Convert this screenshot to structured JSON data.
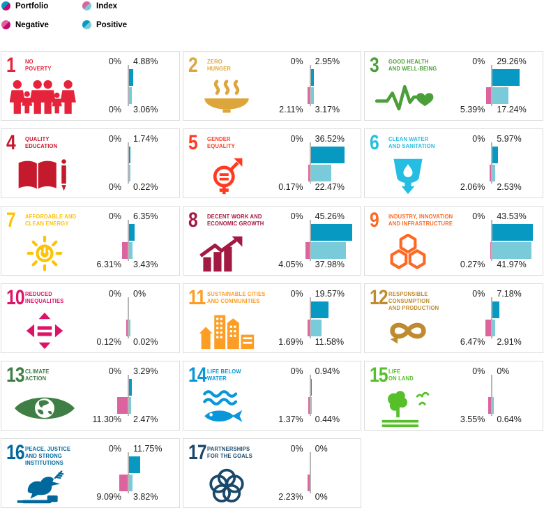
{
  "legend": {
    "items": [
      {
        "id": "portfolio",
        "label": "Portfolio",
        "swatch_colors": [
          "#0899C2",
          "#C00A6E"
        ]
      },
      {
        "id": "index",
        "label": "Index",
        "swatch_colors": [
          "#DD639E",
          "#79CBD9"
        ]
      },
      {
        "id": "negative",
        "label": "Negative",
        "swatch_colors": [
          "#DD639E",
          "#C00A6E"
        ]
      },
      {
        "id": "positive",
        "label": "Positive",
        "swatch_colors": [
          "#0899C2",
          "#79CBD9"
        ]
      }
    ]
  },
  "chart_style": {
    "portfolio_positive_color": "#0899C2",
    "portfolio_negative_color": "#C00A6E",
    "index_positive_color": "#79CBD9",
    "index_negative_color": "#DD639E",
    "axis_color": "#B5B5B5",
    "label_color": "#1D1D1B"
  },
  "goals": [
    {
      "number": "1",
      "title_lines": [
        "NO",
        "POVERTY"
      ],
      "color": "#E5243B",
      "icon": "people-icon",
      "bars": {
        "portfolio_negative": 0,
        "portfolio_positive": 4.88,
        "index_negative": 0,
        "index_positive": 3.06
      },
      "labels": {
        "portfolio_negative": "0%",
        "portfolio_positive": "4.88%",
        "index_negative": "0%",
        "index_positive": "3.06%"
      }
    },
    {
      "number": "2",
      "title_lines": [
        "ZERO",
        "HUNGER"
      ],
      "color": "#DDA63A",
      "icon": "bowl-icon",
      "bars": {
        "portfolio_negative": 0,
        "portfolio_positive": 2.95,
        "index_negative": 2.11,
        "index_positive": 3.17
      },
      "labels": {
        "portfolio_negative": "0%",
        "portfolio_positive": "2.95%",
        "index_negative": "2.11%",
        "index_positive": "3.17%"
      }
    },
    {
      "number": "3",
      "title_lines": [
        "GOOD HEALTH",
        "AND WELL-BEING"
      ],
      "color": "#4C9F38",
      "icon": "heartbeat-icon",
      "bars": {
        "portfolio_negative": 0,
        "portfolio_positive": 29.26,
        "index_negative": 5.39,
        "index_positive": 17.24
      },
      "labels": {
        "portfolio_negative": "0%",
        "portfolio_positive": "29.26%",
        "index_negative": "5.39%",
        "index_positive": "17.24%"
      }
    },
    {
      "number": "4",
      "title_lines": [
        "QUALITY",
        "EDUCATION"
      ],
      "color": "#C5192D",
      "icon": "book-icon",
      "bars": {
        "portfolio_negative": 0,
        "portfolio_positive": 1.74,
        "index_negative": 0,
        "index_positive": 0.22
      },
      "labels": {
        "portfolio_negative": "0%",
        "portfolio_positive": "1.74%",
        "index_negative": "0%",
        "index_positive": "0.22%"
      }
    },
    {
      "number": "5",
      "title_lines": [
        "GENDER",
        "EQUALITY"
      ],
      "color": "#FF3A21",
      "icon": "gender-equality-icon",
      "bars": {
        "portfolio_negative": 0,
        "portfolio_positive": 36.52,
        "index_negative": 0.17,
        "index_positive": 22.47
      },
      "labels": {
        "portfolio_negative": "0%",
        "portfolio_positive": "36.52%",
        "index_negative": "0.17%",
        "index_positive": "22.47%"
      }
    },
    {
      "number": "6",
      "title_lines": [
        "CLEAN WATER",
        "AND SANITATION"
      ],
      "color": "#26BDE2",
      "icon": "water-icon",
      "bars": {
        "portfolio_negative": 0,
        "portfolio_positive": 5.97,
        "index_negative": 2.06,
        "index_positive": 2.53
      },
      "labels": {
        "portfolio_negative": "0%",
        "portfolio_positive": "5.97%",
        "index_negative": "2.06%",
        "index_positive": "2.53%"
      }
    },
    {
      "number": "7",
      "title_lines": [
        "AFFORDABLE AND",
        "CLEAN ENERGY"
      ],
      "color": "#FCC30B",
      "icon": "sun-power-icon",
      "bars": {
        "portfolio_negative": 0,
        "portfolio_positive": 6.35,
        "index_negative": 6.31,
        "index_positive": 3.43
      },
      "labels": {
        "portfolio_negative": "0%",
        "portfolio_positive": "6.35%",
        "index_negative": "6.31%",
        "index_positive": "3.43%"
      }
    },
    {
      "number": "8",
      "title_lines": [
        "DECENT WORK AND",
        "ECONOMIC GROWTH"
      ],
      "color": "#A21942",
      "icon": "growth-chart-icon",
      "bars": {
        "portfolio_negative": 0,
        "portfolio_positive": 45.26,
        "index_negative": 4.05,
        "index_positive": 37.98
      },
      "labels": {
        "portfolio_negative": "0%",
        "portfolio_positive": "45.26%",
        "index_negative": "4.05%",
        "index_positive": "37.98%"
      }
    },
    {
      "number": "9",
      "title_lines": [
        "INDUSTRY, INNOVATION",
        "AND INFRASTRUCTURE"
      ],
      "color": "#FD6925",
      "icon": "cubes-icon",
      "bars": {
        "portfolio_negative": 0,
        "portfolio_positive": 43.53,
        "index_negative": 0.27,
        "index_positive": 41.97
      },
      "labels": {
        "portfolio_negative": "0%",
        "portfolio_positive": "43.53%",
        "index_negative": "0.27%",
        "index_positive": "41.97%"
      }
    },
    {
      "number": "10",
      "title_lines": [
        "REDUCED",
        "INEQUALITIES"
      ],
      "color": "#DD1367",
      "icon": "equality-arrows-icon",
      "bars": {
        "portfolio_negative": 0,
        "portfolio_positive": 0,
        "index_negative": 0.12,
        "index_positive": 0.02
      },
      "labels": {
        "portfolio_negative": "0%",
        "portfolio_positive": "0%",
        "index_negative": "0.12%",
        "index_positive": "0.02%"
      }
    },
    {
      "number": "11",
      "title_lines": [
        "SUSTAINABLE CITIES",
        "AND COMMUNITIES"
      ],
      "color": "#FD9D24",
      "icon": "city-icon",
      "bars": {
        "portfolio_negative": 0,
        "portfolio_positive": 19.57,
        "index_negative": 1.69,
        "index_positive": 11.58
      },
      "labels": {
        "portfolio_negative": "0%",
        "portfolio_positive": "19.57%",
        "index_negative": "1.69%",
        "index_positive": "11.58%"
      }
    },
    {
      "number": "12",
      "title_lines": [
        "RESPONSIBLE",
        "CONSUMPTION",
        "AND PRODUCTION"
      ],
      "color": "#BF8B2E",
      "icon": "infinity-icon",
      "bars": {
        "portfolio_negative": 0,
        "portfolio_positive": 7.18,
        "index_negative": 6.47,
        "index_positive": 2.91
      },
      "labels": {
        "portfolio_negative": "0%",
        "portfolio_positive": "7.18%",
        "index_negative": "6.47%",
        "index_positive": "2.91%"
      }
    },
    {
      "number": "13",
      "title_lines": [
        "CLIMATE",
        "ACTION"
      ],
      "color": "#3F7E44",
      "icon": "eye-globe-icon",
      "bars": {
        "portfolio_negative": 0,
        "portfolio_positive": 3.29,
        "index_negative": 11.3,
        "index_positive": 2.47
      },
      "labels": {
        "portfolio_negative": "0%",
        "portfolio_positive": "3.29%",
        "index_negative": "11.30%",
        "index_positive": "2.47%"
      }
    },
    {
      "number": "14",
      "title_lines": [
        "LIFE BELOW",
        "WATER"
      ],
      "color": "#0A97D9",
      "icon": "fish-icon",
      "bars": {
        "portfolio_negative": 0,
        "portfolio_positive": 0.94,
        "index_negative": 1.37,
        "index_positive": 0.44
      },
      "labels": {
        "portfolio_negative": "0%",
        "portfolio_positive": "0.94%",
        "index_negative": "1.37%",
        "index_positive": "0.44%"
      }
    },
    {
      "number": "15",
      "title_lines": [
        "LIFE",
        "ON LAND"
      ],
      "color": "#56C02B",
      "icon": "tree-icon",
      "bars": {
        "portfolio_negative": 0,
        "portfolio_positive": 0,
        "index_negative": 3.55,
        "index_positive": 0.64
      },
      "labels": {
        "portfolio_negative": "0%",
        "portfolio_positive": "0%",
        "index_negative": "3.55%",
        "index_positive": "0.64%"
      }
    },
    {
      "number": "16",
      "title_lines": [
        "PEACE, JUSTICE",
        "AND STRONG",
        "INSTITUTIONS"
      ],
      "color": "#00689D",
      "icon": "dove-icon",
      "bars": {
        "portfolio_negative": 0,
        "portfolio_positive": 11.75,
        "index_negative": 9.09,
        "index_positive": 3.82
      },
      "labels": {
        "portfolio_negative": "0%",
        "portfolio_positive": "11.75%",
        "index_negative": "9.09%",
        "index_positive": "3.82%"
      }
    },
    {
      "number": "17",
      "title_lines": [
        "PARTNERSHIPS",
        "FOR THE GOALS"
      ],
      "color": "#19486A",
      "icon": "flower-circles-icon",
      "bars": {
        "portfolio_negative": 0,
        "portfolio_positive": 0,
        "index_negative": 2.23,
        "index_positive": 0
      },
      "labels": {
        "portfolio_negative": "0%",
        "portfolio_positive": "0%",
        "index_negative": "2.23%",
        "index_positive": "0%"
      }
    }
  ],
  "chart_data": {
    "type": "bar",
    "orientation": "horizontal",
    "unit": "%",
    "legend_position": "top-left",
    "categories": [
      "1 No Poverty",
      "2 Zero Hunger",
      "3 Good Health and Well-Being",
      "4 Quality Education",
      "5 Gender Equality",
      "6 Clean Water and Sanitation",
      "7 Affordable and Clean Energy",
      "8 Decent Work and Economic Growth",
      "9 Industry, Innovation and Infrastructure",
      "10 Reduced Inequalities",
      "11 Sustainable Cities and Communities",
      "12 Responsible Consumption and Production",
      "13 Climate Action",
      "14 Life Below Water",
      "15 Life on Land",
      "16 Peace, Justice and Strong Institutions",
      "17 Partnerships for the Goals"
    ],
    "series": [
      {
        "name": "Portfolio Negative",
        "values": [
          0,
          0,
          0,
          0,
          0,
          0,
          0,
          0,
          0,
          0,
          0,
          0,
          0,
          0,
          0,
          0,
          0
        ]
      },
      {
        "name": "Portfolio Positive",
        "values": [
          4.88,
          2.95,
          29.26,
          1.74,
          36.52,
          5.97,
          6.35,
          45.26,
          43.53,
          0,
          19.57,
          7.18,
          3.29,
          0.94,
          0,
          11.75,
          0
        ]
      },
      {
        "name": "Index Negative",
        "values": [
          0,
          2.11,
          5.39,
          0,
          0.17,
          2.06,
          6.31,
          4.05,
          0.27,
          0.12,
          1.69,
          6.47,
          11.3,
          1.37,
          3.55,
          9.09,
          2.23
        ]
      },
      {
        "name": "Index Positive",
        "values": [
          3.06,
          3.17,
          17.24,
          0.22,
          22.47,
          2.53,
          3.43,
          37.98,
          41.97,
          0.02,
          11.58,
          2.91,
          2.47,
          0.44,
          0.64,
          3.82,
          0
        ]
      }
    ]
  }
}
